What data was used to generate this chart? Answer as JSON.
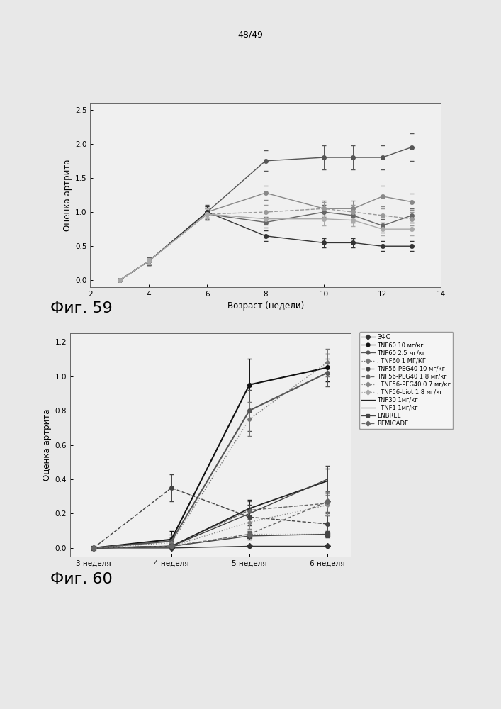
{
  "page_label": "48/49",
  "bg_color": "#e8e8e8",
  "fig59": {
    "xlabel": "Возраст (недели)",
    "ylabel": "Оценка артрита",
    "fig_label": "Фиг. 59",
    "xlim": [
      2,
      14
    ],
    "ylim": [
      -0.1,
      2.6
    ],
    "yticks": [
      0.0,
      0.5,
      1.0,
      1.5,
      2.0,
      2.5
    ],
    "ytick_labels": [
      "0.0",
      "0.5",
      "1.0",
      "1.5",
      "2.0",
      "2.5"
    ],
    "xticks": [
      2,
      4,
      6,
      8,
      10,
      12,
      14
    ],
    "series": [
      {
        "x": [
          3,
          4,
          6,
          8,
          10,
          11,
          12,
          13
        ],
        "y": [
          0.0,
          0.28,
          1.0,
          1.75,
          1.8,
          1.8,
          1.8,
          1.95
        ],
        "yerr": [
          0.0,
          0.06,
          0.1,
          0.15,
          0.18,
          0.18,
          0.18,
          0.2
        ],
        "color": "#555555",
        "marker": "o",
        "linestyle": "-",
        "markersize": 4
      },
      {
        "x": [
          3,
          4,
          6,
          8,
          10,
          11,
          12,
          13
        ],
        "y": [
          0.0,
          0.28,
          1.0,
          1.28,
          1.05,
          1.05,
          1.23,
          1.15
        ],
        "yerr": [
          0.0,
          0.06,
          0.08,
          0.1,
          0.12,
          0.12,
          0.15,
          0.12
        ],
        "color": "#888888",
        "marker": "o",
        "linestyle": "-",
        "markersize": 4
      },
      {
        "x": [
          3,
          4,
          6,
          8,
          10,
          11,
          12,
          13
        ],
        "y": [
          0.0,
          0.28,
          1.0,
          0.65,
          0.55,
          0.55,
          0.5,
          0.5
        ],
        "yerr": [
          0.0,
          0.06,
          0.08,
          0.08,
          0.07,
          0.07,
          0.07,
          0.07
        ],
        "color": "#333333",
        "marker": "o",
        "linestyle": "-",
        "markersize": 4
      },
      {
        "x": [
          3,
          4,
          6,
          8,
          10,
          11,
          12,
          13
        ],
        "y": [
          0.0,
          0.28,
          0.97,
          0.85,
          1.0,
          0.95,
          0.8,
          0.95
        ],
        "yerr": [
          0.0,
          0.05,
          0.08,
          0.08,
          0.1,
          0.1,
          0.1,
          0.1
        ],
        "color": "#666666",
        "marker": "o",
        "linestyle": "-",
        "markersize": 4
      },
      {
        "x": [
          3,
          4,
          6,
          8,
          10,
          11,
          12,
          13
        ],
        "y": [
          0.0,
          0.28,
          0.97,
          1.0,
          1.05,
          1.0,
          0.95,
          0.9
        ],
        "yerr": [
          0.0,
          0.05,
          0.08,
          0.1,
          0.1,
          0.1,
          0.1,
          0.1
        ],
        "color": "#999999",
        "marker": "o",
        "linestyle": "--",
        "markersize": 4
      },
      {
        "x": [
          3,
          4,
          6,
          8,
          10,
          11,
          12,
          13
        ],
        "y": [
          0.0,
          0.28,
          0.97,
          0.9,
          0.9,
          0.88,
          0.75,
          0.75
        ],
        "yerr": [
          0.0,
          0.05,
          0.08,
          0.09,
          0.1,
          0.09,
          0.09,
          0.09
        ],
        "color": "#aaaaaa",
        "marker": "o",
        "linestyle": "-",
        "markersize": 4
      }
    ]
  },
  "fig60": {
    "ylabel": "Оценка артрита",
    "fig_label": "Фиг. 60",
    "xlim": [
      -0.3,
      3.3
    ],
    "ylim": [
      -0.05,
      1.25
    ],
    "yticks": [
      0.0,
      0.2,
      0.4,
      0.6,
      0.8,
      1.0,
      1.2
    ],
    "xtick_labels": [
      "3 неделя",
      "4 неделя",
      "5 неделя",
      "6 неделя"
    ],
    "series": [
      {
        "label": "ЗФС",
        "x": [
          0,
          1,
          2,
          3
        ],
        "y": [
          0.0,
          0.0,
          0.01,
          0.01
        ],
        "yerr": [
          0.0,
          0.0,
          0.0,
          0.0
        ],
        "color": "#333333",
        "marker": "D",
        "linestyle": "-",
        "markersize": 4,
        "linewidth": 1.0
      },
      {
        "label": "TNF60 10 мг/кг",
        "x": [
          0,
          1,
          2,
          3
        ],
        "y": [
          0.0,
          0.05,
          0.95,
          1.05
        ],
        "yerr": [
          0.0,
          0.05,
          0.15,
          0.08
        ],
        "color": "#111111",
        "marker": "o",
        "linestyle": "-",
        "markersize": 4,
        "linewidth": 1.5
      },
      {
        "label": "TNF60 2.5 мг/кг",
        "x": [
          0,
          1,
          2,
          3
        ],
        "y": [
          0.0,
          0.04,
          0.8,
          1.02
        ],
        "yerr": [
          0.0,
          0.04,
          0.12,
          0.08
        ],
        "color": "#555555",
        "marker": "o",
        "linestyle": "-",
        "markersize": 4,
        "linewidth": 1.5
      },
      {
        "label": "TNF60 1 мг/кг",
        "x": [
          0,
          1,
          2,
          3
        ],
        "y": [
          0.0,
          0.03,
          0.75,
          1.08
        ],
        "yerr": [
          0.0,
          0.03,
          0.1,
          0.08
        ],
        "color": "#777777",
        "marker": "D",
        "linestyle": ":",
        "markersize": 3,
        "linewidth": 1.0
      },
      {
        "label": "TNF56-PEG40 10 мг/кг",
        "x": [
          0,
          1,
          2,
          3
        ],
        "y": [
          0.0,
          0.35,
          0.18,
          0.14
        ],
        "yerr": [
          0.0,
          0.08,
          0.05,
          0.05
        ],
        "color": "#444444",
        "marker": "o",
        "linestyle": "--",
        "markersize": 4,
        "linewidth": 1.0
      },
      {
        "label": "TNF56-PEG40 1.8 мг/кг",
        "x": [
          0,
          1,
          2,
          3
        ],
        "y": [
          0.0,
          0.01,
          0.22,
          0.26
        ],
        "yerr": [
          0.0,
          0.01,
          0.05,
          0.06
        ],
        "color": "#666666",
        "marker": "o",
        "linestyle": "--",
        "markersize": 4,
        "linewidth": 1.0
      },
      {
        "label": "TNF56-PEG40 0.7 мг/кг",
        "x": [
          0,
          1,
          2,
          3
        ],
        "y": [
          0.0,
          0.01,
          0.15,
          0.25
        ],
        "yerr": [
          0.0,
          0.01,
          0.04,
          0.06
        ],
        "color": "#888888",
        "marker": "D",
        "linestyle": ":",
        "markersize": 3,
        "linewidth": 1.0
      },
      {
        "label": "TNF56-biot 1.8 мг/кг",
        "x": [
          0,
          1,
          2,
          3
        ],
        "y": [
          0.0,
          0.01,
          0.08,
          0.08
        ],
        "yerr": [
          0.0,
          0.01,
          0.02,
          0.02
        ],
        "color": "#aaaaaa",
        "marker": "D",
        "linestyle": ":",
        "markersize": 3,
        "linewidth": 0.9
      },
      {
        "label": "TNF30 1мг/кг",
        "x": [
          0,
          1,
          2,
          3
        ],
        "y": [
          0.0,
          0.01,
          0.23,
          0.39
        ],
        "yerr": [
          0.0,
          0.01,
          0.05,
          0.07
        ],
        "color": "#222222",
        "marker": null,
        "linestyle": "-",
        "markersize": 0,
        "linewidth": 1.3
      },
      {
        "label": "TNF1 1мг/кг",
        "x": [
          0,
          1,
          2,
          3
        ],
        "y": [
          0.0,
          0.01,
          0.2,
          0.4
        ],
        "yerr": [
          0.0,
          0.01,
          0.05,
          0.08
        ],
        "color": "#444444",
        "marker": null,
        "linestyle": "-",
        "markersize": 0,
        "linewidth": 1.0
      },
      {
        "label": "ENBREL",
        "x": [
          0,
          1,
          2,
          3
        ],
        "y": [
          0.0,
          0.01,
          0.07,
          0.08
        ],
        "yerr": [
          0.0,
          0.01,
          0.02,
          0.02
        ],
        "color": "#444444",
        "marker": "s",
        "linestyle": "-",
        "markersize": 4,
        "linewidth": 1.0
      },
      {
        "label": "REMICADE",
        "x": [
          0,
          1,
          2,
          3
        ],
        "y": [
          0.0,
          0.01,
          0.08,
          0.27
        ],
        "yerr": [
          0.0,
          0.01,
          0.02,
          0.06
        ],
        "color": "#666666",
        "marker": "D",
        "linestyle": "--",
        "markersize": 4,
        "linewidth": 1.0
      }
    ],
    "legend_entries": [
      {
        "label": "ЗФС",
        "color": "#333333",
        "marker": "D",
        "linestyle": "-"
      },
      {
        "label": "TNF60 10 мг/кг",
        "color": "#111111",
        "marker": "o",
        "linestyle": "-"
      },
      {
        "label": "TNF60 2.5 мг/кг",
        "color": "#555555",
        "marker": "o",
        "linestyle": "-"
      },
      {
        "label": ". TNF60 1 МГ/КГ",
        "color": "#777777",
        "marker": "D",
        "linestyle": ":"
      },
      {
        "label": "TNF56-PEG40 10 мг/кг",
        "color": "#444444",
        "marker": "o",
        "linestyle": "--"
      },
      {
        "label": "TNF56-PEG40 1.8 мг/кг",
        "color": "#666666",
        "marker": "o",
        "linestyle": "--"
      },
      {
        "label": ". TNF56-PEG40 0.7 мг/кг",
        "color": "#888888",
        "marker": "D",
        "linestyle": ":"
      },
      {
        "label": ". TNF56-biot 1.8 мг/кг",
        "color": "#aaaaaa",
        "marker": "D",
        "linestyle": ":"
      },
      {
        "label": "TNF30 1мг/кг",
        "color": "#222222",
        "marker": "None",
        "linestyle": "-"
      },
      {
        "label": "  TNF1 1мг/кг",
        "color": "#444444",
        "marker": "None",
        "linestyle": "-"
      },
      {
        "label": "ENBREL",
        "color": "#444444",
        "marker": "s",
        "linestyle": "-"
      },
      {
        "label": "REMICADE",
        "color": "#666666",
        "marker": "D",
        "linestyle": "--"
      }
    ]
  }
}
